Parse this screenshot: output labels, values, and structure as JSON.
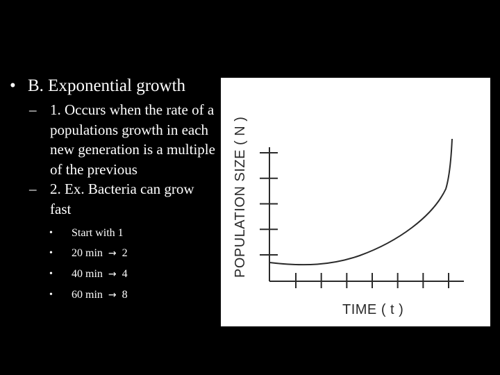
{
  "slide": {
    "bullet_b": "B. Exponential growth",
    "point_1": "1. Occurs when the rate of a populations growth in each new generation is a multiple of the previous",
    "point_2": "2. Ex. Bacteria can grow fast",
    "examples": [
      {
        "start": "Start with 1"
      },
      {
        "time": "20 min",
        "count": "2"
      },
      {
        "time": "40 min",
        "count": "4"
      },
      {
        "time": "60 min",
        "count": "8"
      }
    ],
    "markers": {
      "level1": "•",
      "level2": "–",
      "level3": "•",
      "arrow": "→"
    }
  },
  "chart_data": {
    "type": "line",
    "ylabel": "POPULATION  SIZE  ( N )",
    "xlabel": "TIME  ( t )",
    "curve_shape": "exponential (J-shaped)",
    "x_ticks": 7,
    "y_ticks": 5,
    "tick_labels_shown": false,
    "colors": {
      "background": "#ffffff",
      "ink": "#2a2a2a"
    }
  }
}
